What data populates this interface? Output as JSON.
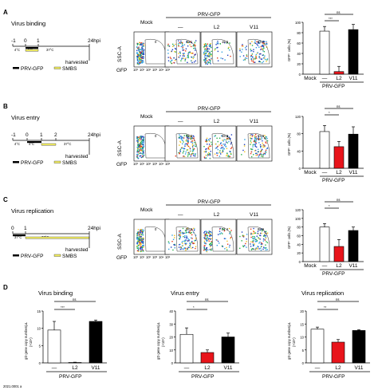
{
  "colors": {
    "mock": "#ffffff",
    "l2": "#e8141b",
    "v11": "#000000",
    "prv_bar": "#000000",
    "smbs_bar": "#f2ee64"
  },
  "rows": [
    {
      "letter": "A",
      "title": "Virus binding",
      "timeline": {
        "ticks": [
          "-1",
          "0",
          "1"
        ],
        "end": "24hpi",
        "temps": [
          "4°C",
          "4°C",
          "37°C"
        ],
        "harvest": "harvested",
        "legend": [
          "PRV-GFP",
          "SMBS"
        ]
      },
      "flow": {
        "mock_label": "Mock",
        "prv_label": "PRV-GFP",
        "cols": [
          "—",
          "L2",
          "V11"
        ],
        "values": [
          "0",
          "72.1",
          "16.6",
          "83.7"
        ],
        "ylabel": "SSC-A",
        "xlabel": "GFP",
        "xticks": [
          "10⁰",
          "10¹",
          "10²",
          "10³",
          "10⁴",
          "10⁵"
        ]
      },
      "chart_data": {
        "type": "bar",
        "categories": [
          "Mock",
          "—",
          "L2",
          "V11"
        ],
        "values": [
          0,
          83,
          5,
          86
        ],
        "errors": [
          0,
          9,
          10,
          10
        ],
        "ylabel": "GFP⁺ cells (%)",
        "ylim": [
          0,
          100
        ],
        "yticks": [
          0,
          20,
          40,
          60,
          80,
          100
        ],
        "sig": [
          {
            "label": "***"
          },
          {
            "label": "ns"
          }
        ],
        "group_label": "PRV-GFP"
      }
    },
    {
      "letter": "B",
      "title": "Virus entry",
      "timeline": {
        "ticks": [
          "-1",
          "0",
          "1",
          "2"
        ],
        "end": "24hpi",
        "temps": [
          "4°C",
          "4°C",
          "37°C"
        ],
        "harvest": "harvested",
        "legend": [
          "PRV-GFP",
          "SMBS"
        ]
      },
      "flow": {
        "mock_label": "Mock",
        "prv_label": "PRV-GFP",
        "cols": [
          "—",
          "L2",
          "V11"
        ],
        "values": [
          "0",
          "95.3",
          "58.5",
          "93.9"
        ],
        "ylabel": "SSC-A",
        "xlabel": "GFP",
        "xticks": [
          "10⁰",
          "10¹",
          "10²",
          "10³",
          "10⁴",
          "10⁵"
        ]
      },
      "chart_data": {
        "type": "bar",
        "categories": [
          "Mock",
          "—",
          "L2",
          "V11"
        ],
        "values": [
          0,
          85,
          50,
          79
        ],
        "errors": [
          0,
          14,
          12,
          17
        ],
        "ylabel": "GFP⁺ cells (%)",
        "ylim": [
          0,
          120
        ],
        "yticks": [
          0,
          40,
          80,
          120
        ],
        "sig": [
          {
            "label": "*"
          },
          {
            "label": "ns"
          }
        ],
        "group_label": "PRV-GFP"
      }
    },
    {
      "letter": "C",
      "title": "Virus replication",
      "timeline": {
        "ticks": [
          "0",
          "1"
        ],
        "end": "24hpi",
        "temps": [
          "37°C",
          "37°C"
        ],
        "harvest": "harvested",
        "legend": [
          "PRV-GFP",
          "SMBS"
        ]
      },
      "flow": {
        "mock_label": "Mock",
        "prv_label": "PRV-GFP",
        "cols": [
          "—",
          "L2",
          "V11"
        ],
        "values": [
          "0",
          "86.0",
          "21.4",
          "85.6"
        ],
        "ylabel": "SSC-A",
        "xlabel": "GFP",
        "xticks": [
          "10⁰",
          "10¹",
          "10²",
          "10³",
          "10⁴",
          "10⁵"
        ]
      },
      "chart_data": {
        "type": "bar",
        "categories": [
          "Mock",
          "—",
          "L2",
          "V11"
        ],
        "values": [
          0,
          80,
          35,
          72
        ],
        "errors": [
          0,
          8,
          16,
          8
        ],
        "ylabel": "GFP⁺ cells (%)",
        "ylim": [
          0,
          120
        ],
        "yticks": [
          0,
          20,
          40,
          60,
          80,
          100,
          120
        ],
        "sig": [
          {
            "label": "*"
          },
          {
            "label": "ns"
          }
        ],
        "group_label": "PRV-GFP"
      }
    }
  ],
  "panel_d": {
    "letter": "D",
    "ylabel": "gD gene copy number/µL",
    "yunit": "(×10⁶)",
    "group_label": "PRV-GFP",
    "charts": [
      {
        "title": "Virus binding",
        "type": "bar",
        "categories": [
          "—",
          "L2",
          "V11"
        ],
        "values": [
          9.5,
          0.1,
          12
        ],
        "errors": [
          2.5,
          0.1,
          0.4
        ],
        "ylim": [
          0,
          15
        ],
        "yticks": [
          0,
          5,
          10,
          15
        ],
        "sig": [
          {
            "label": "***"
          },
          {
            "label": "ns"
          }
        ]
      },
      {
        "title": "Virus entry",
        "type": "bar",
        "categories": [
          "—",
          "L2",
          "V11"
        ],
        "values": [
          22,
          8,
          20
        ],
        "errors": [
          5,
          2,
          3
        ],
        "ylim": [
          0,
          40
        ],
        "yticks": [
          0,
          10,
          20,
          30,
          40
        ],
        "sig": [
          {
            "label": "*"
          },
          {
            "label": "ns"
          }
        ]
      },
      {
        "title": "Virus replication",
        "type": "bar",
        "categories": [
          "—",
          "L2",
          "V11"
        ],
        "values": [
          13,
          8,
          12.5
        ],
        "errors": [
          0.8,
          1,
          0.3
        ],
        "ylim": [
          0,
          20
        ],
        "yticks": [
          0,
          5,
          10,
          15,
          20
        ],
        "sig": [
          {
            "label": "**"
          },
          {
            "label": "ns"
          }
        ]
      }
    ]
  },
  "footer": "2021.0001 a"
}
